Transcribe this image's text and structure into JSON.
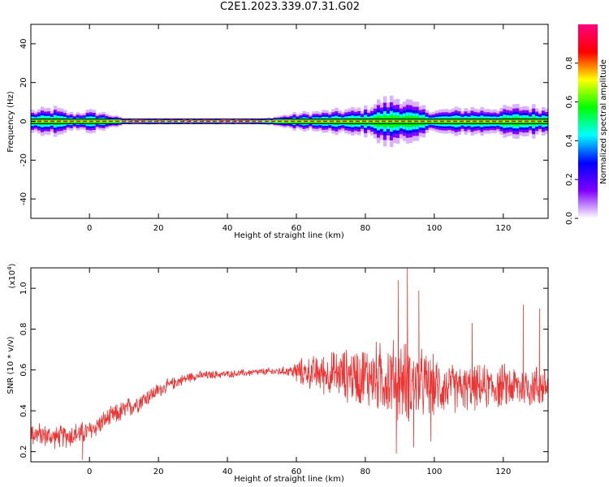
{
  "title": "C2E1.2023.339.07.31.G02",
  "chart_data": [
    {
      "type": "heatmap",
      "xlabel": "Height of straight line (km)",
      "ylabel": "Frequency (Hz)",
      "xlim": [
        -17,
        133
      ],
      "ylim": [
        -50,
        50
      ],
      "xticks": [
        0,
        20,
        40,
        60,
        80,
        100,
        120
      ],
      "yticks": [
        -40,
        -20,
        0,
        20,
        40
      ],
      "colorbar": {
        "label": "Normalized spectral amplitude",
        "range": [
          0.0,
          1.0
        ],
        "ticks": [
          0.0,
          0.2,
          0.4,
          0.6,
          0.8
        ],
        "colormap": [
          "#ffffff",
          "#8000ff",
          "#0000ff",
          "#00ffff",
          "#00ff00",
          "#ffff00",
          "#ff0000",
          "#ff0080"
        ]
      },
      "band_spread_hz": {
        "x": [
          -17,
          -10,
          -5,
          0,
          5,
          10,
          20,
          40,
          50,
          55,
          60,
          70,
          80,
          85,
          90,
          95,
          100,
          110,
          120,
          125,
          133
        ],
        "spread": [
          4,
          5,
          3,
          4,
          3,
          1,
          1,
          1,
          1,
          2,
          3,
          4,
          5,
          8,
          9,
          6,
          4,
          5,
          5,
          6,
          5
        ]
      }
    },
    {
      "type": "line",
      "xlabel": "Height of straight line (km)",
      "ylabel": "SNR (10 * v/v)",
      "y_multiplier": "(x10",
      "y_multiplier_exp": "4",
      "y_multiplier_close": ")",
      "xlim": [
        -17,
        133
      ],
      "ylim": [
        1500,
        11000
      ],
      "xticks": [
        0,
        20,
        40,
        60,
        80,
        100,
        120
      ],
      "yticks": [
        2000,
        4000,
        6000,
        8000,
        10000
      ],
      "ytick_labels": [
        "0.2",
        "0.4",
        "0.6",
        "0.8",
        "1.0"
      ],
      "color": "#ee3333",
      "trend": {
        "x": [
          -17,
          -10,
          -5,
          0,
          5,
          10,
          15,
          20,
          25,
          30,
          40,
          50,
          58,
          60,
          70,
          80,
          90,
          95,
          100,
          105,
          110,
          120,
          133
        ],
        "mean": [
          2900,
          2700,
          2800,
          3000,
          3600,
          4000,
          4500,
          5000,
          5400,
          5700,
          5800,
          5900,
          5950,
          5900,
          5800,
          5700,
          5500,
          5300,
          5200,
          5100,
          5100,
          5200,
          5200
        ],
        "noise": [
          500,
          450,
          500,
          450,
          400,
          450,
          400,
          300,
          250,
          200,
          150,
          150,
          200,
          500,
          900,
          1300,
          1700,
          1500,
          1200,
          1000,
          900,
          900,
          900
        ]
      },
      "peaks": [
        {
          "x": 89.5,
          "y": 10400
        },
        {
          "x": 92.2,
          "y": 11000
        },
        {
          "x": 95.5,
          "y": 9900
        },
        {
          "x": 125.8,
          "y": 9200
        },
        {
          "x": 130.5,
          "y": 9000
        },
        {
          "x": 111.0,
          "y": 8300
        }
      ],
      "troughs": [
        {
          "x": 89.0,
          "y": 1900
        },
        {
          "x": 94.0,
          "y": 2200
        },
        {
          "x": -2.0,
          "y": 1600
        },
        {
          "x": 99.0,
          "y": 2500
        }
      ]
    }
  ]
}
